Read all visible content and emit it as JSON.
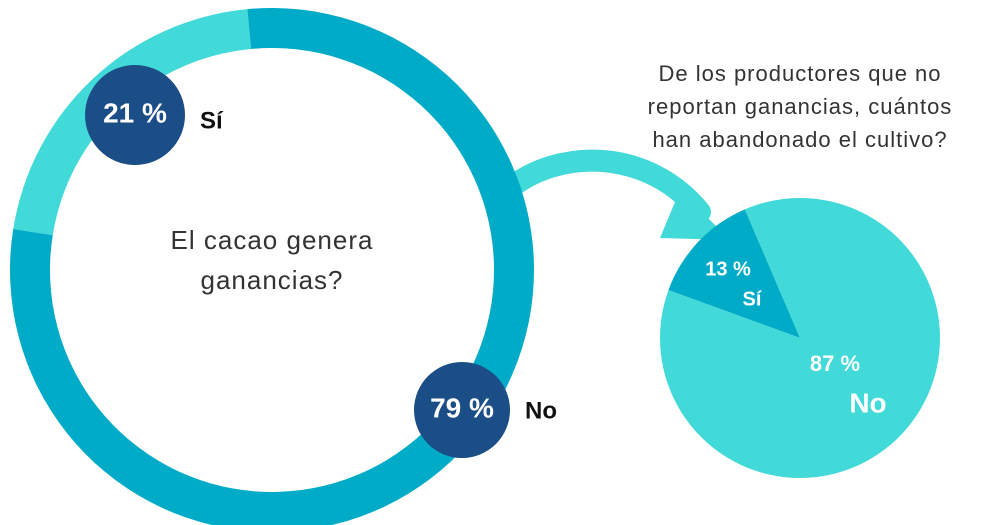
{
  "chart_data": [
    {
      "type": "donut",
      "title": [
        "El cacao genera",
        "ganancias?"
      ],
      "categories": [
        "Sí",
        "No"
      ],
      "values": [
        21,
        79
      ],
      "value_labels": [
        "21 %",
        "79 %"
      ],
      "colors": [
        "#42d9d9",
        "#00abc7"
      ],
      "label_color": "#1b4d86"
    },
    {
      "type": "pie",
      "title": [
        "De los productores que no",
        "reportan ganancias, cuántos",
        "han abandonado el cultivo?"
      ],
      "categories": [
        "Sí",
        "No"
      ],
      "values": [
        13,
        87
      ],
      "value_labels": [
        "13 %",
        "87 %"
      ],
      "colors": [
        "#00abc7",
        "#42d9d9"
      ]
    }
  ]
}
